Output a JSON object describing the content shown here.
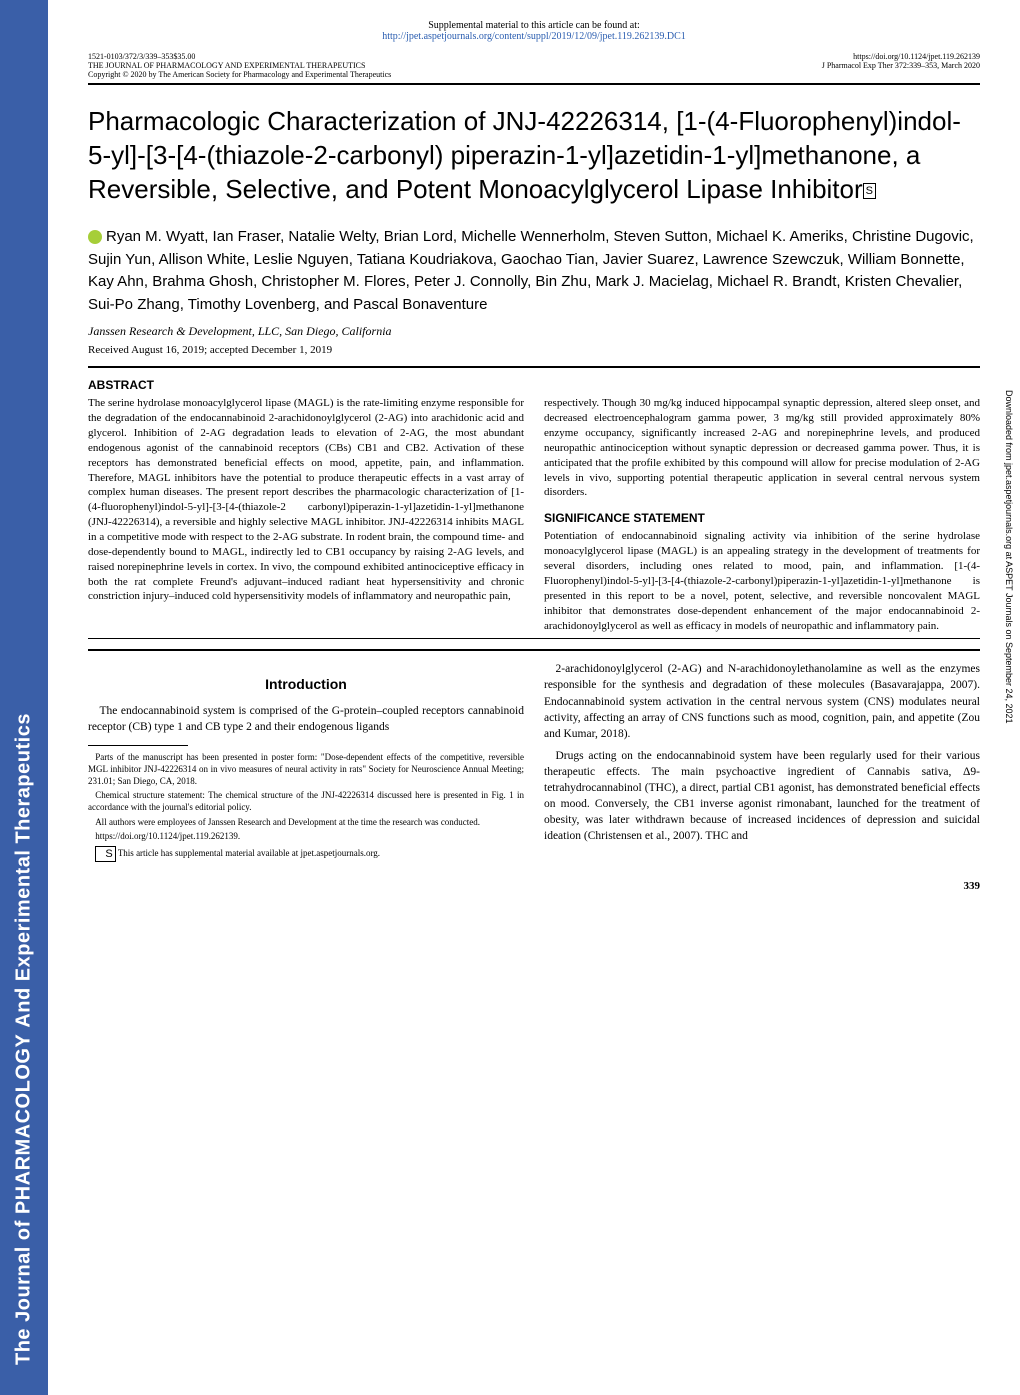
{
  "sidebar": {
    "text_prefix": "The Journal of ",
    "text_highlight": "PHARMACOLOGY",
    "text_suffix": " And Experimental Therapeutics",
    "bg_color": "#3a5fa8",
    "text_color": "#ffffff"
  },
  "supplemental": {
    "line1": "Supplemental material to this article can be found at:",
    "link": "http://jpet.aspetjournals.org/content/suppl/2019/12/09/jpet.119.262139.DC1"
  },
  "header": {
    "left_line1": "1521-0103/372/3/339–353$35.00",
    "left_line2": "THE JOURNAL OF PHARMACOLOGY AND EXPERIMENTAL THERAPEUTICS",
    "left_line3": "Copyright © 2020 by The American Society for Pharmacology and Experimental Therapeutics",
    "right_line1": "https://doi.org/10.1124/jpet.119.262139",
    "right_line2": "J Pharmacol Exp Ther 372:339–353, March 2020"
  },
  "title": "Pharmacologic Characterization of JNJ-42226314, [1-(4-Fluorophenyl)indol-5-yl]-[3-[4-(thiazole-2-carbonyl) piperazin-1-yl]azetidin-1-yl]methanone, a Reversible, Selective, and Potent Monoacylglycerol Lipase Inhibitor",
  "authors": "Ryan M. Wyatt, Ian Fraser, Natalie Welty, Brian Lord, Michelle Wennerholm, Steven Sutton, Michael K. Ameriks, Christine Dugovic, Sujin Yun, Allison White, Leslie Nguyen, Tatiana Koudriakova, Gaochao Tian, Javier Suarez, Lawrence Szewczuk, William Bonnette, Kay Ahn, Brahma Ghosh, Christopher M. Flores, Peter J. Connolly, Bin Zhu, Mark J. Macielag, Michael R. Brandt, Kristen Chevalier, Sui-Po Zhang, Timothy Lovenberg, and Pascal Bonaventure",
  "affiliation": "Janssen Research & Development, LLC, San Diego, California",
  "received": "Received August 16, 2019; accepted December 1, 2019",
  "abstract": {
    "label": "ABSTRACT",
    "col1": "The serine hydrolase monoacylglycerol lipase (MAGL) is the rate-limiting enzyme responsible for the degradation of the endocannabinoid 2-arachidonoylglycerol (2-AG) into arachidonic acid and glycerol. Inhibition of 2-AG degradation leads to elevation of 2-AG, the most abundant endogenous agonist of the cannabinoid receptors (CBs) CB1 and CB2. Activation of these receptors has demonstrated beneficial effects on mood, appetite, pain, and inflammation. Therefore, MAGL inhibitors have the potential to produce therapeutic effects in a vast array of complex human diseases. The present report describes the pharmacologic characterization of [1-(4-fluorophenyl)indol-5-yl]-[3-[4-(thiazole-2 carbonyl)piperazin-1-yl]azetidin-1-yl]methanone (JNJ-42226314), a reversible and highly selective MAGL inhibitor. JNJ-42226314 inhibits MAGL in a competitive mode with respect to the 2-AG substrate. In rodent brain, the compound time- and dose-dependently bound to MAGL, indirectly led to CB1 occupancy by raising 2-AG levels, and raised norepinephrine levels in cortex. In vivo, the compound exhibited antinociceptive efficacy in both the rat complete Freund's adjuvant–induced radiant heat hypersensitivity and chronic constriction injury–induced cold hypersensitivity models of inflammatory and neuropathic pain,",
    "col2": "respectively. Though 30 mg/kg induced hippocampal synaptic depression, altered sleep onset, and decreased electroencephalogram gamma power, 3 mg/kg still provided approximately 80% enzyme occupancy, significantly increased 2-AG and norepinephrine levels, and produced neuropathic antinociception without synaptic depression or decreased gamma power. Thus, it is anticipated that the profile exhibited by this compound will allow for precise modulation of 2-AG levels in vivo, supporting potential therapeutic application in several central nervous system disorders.",
    "sig_label": "SIGNIFICANCE STATEMENT",
    "sig": "Potentiation of endocannabinoid signaling activity via inhibition of the serine hydrolase monoacylglycerol lipase (MAGL) is an appealing strategy in the development of treatments for several disorders, including ones related to mood, pain, and inflammation. [1-(4-Fluorophenyl)indol-5-yl]-[3-[4-(thiazole-2-carbonyl)piperazin-1-yl]azetidin-1-yl]methanone is presented in this report to be a novel, potent, selective, and reversible noncovalent MAGL inhibitor that demonstrates dose-dependent enhancement of the major endocannabinoid 2-arachidonoylglycerol as well as efficacy in models of neuropathic and inflammatory pain."
  },
  "intro": {
    "heading": "Introduction",
    "col1_p1": "The endocannabinoid system is comprised of the G-protein–coupled receptors cannabinoid receptor (CB) type 1 and CB type 2 and their endogenous ligands",
    "col2_p1": "2-arachidonoylglycerol (2-AG) and N-arachidonoylethanolamine as well as the enzymes responsible for the synthesis and degradation of these molecules (Basavarajappa, 2007). Endocannabinoid system activation in the central nervous system (CNS) modulates neural activity, affecting an array of CNS functions such as mood, cognition, pain, and appetite (Zou and Kumar, 2018).",
    "col2_p2": "Drugs acting on the endocannabinoid system have been regularly used for their various therapeutic effects. The main psychoactive ingredient of Cannabis sativa, Δ9-tetrahydrocannabinol (THC), a direct, partial CB1 agonist, has demonstrated beneficial effects on mood. Conversely, the CB1 inverse agonist rimonabant, launched for the treatment of obesity, was later withdrawn because of increased incidences of depression and suicidal ideation (Christensen et al., 2007). THC and"
  },
  "footnotes": {
    "f1": "Parts of the manuscript has been presented in poster form: \"Dose-dependent effects of the competitive, reversible MGL inhibitor JNJ-42226314 on in vivo measures of neural activity in rats\" Society for Neuroscience Annual Meeting; 231.01; San Diego, CA, 2018.",
    "f2": "Chemical structure statement: The chemical structure of the JNJ-42226314 discussed here is presented in Fig. 1 in accordance with the journal's editorial policy.",
    "f3": "All authors were employees of Janssen Research and Development at the time the research was conducted.",
    "f4": "https://doi.org/10.1124/jpet.119.262139.",
    "f5": "This article has supplemental material available at jpet.aspetjournals.org."
  },
  "page_number": "339",
  "right_margin": "Downloaded from jpet.aspetjournals.org at ASPET Journals on September 24, 2021",
  "colors": {
    "link_color": "#2a5db0",
    "text_color": "#000000",
    "bg_color": "#ffffff",
    "orcid_color": "#a6ce39"
  }
}
